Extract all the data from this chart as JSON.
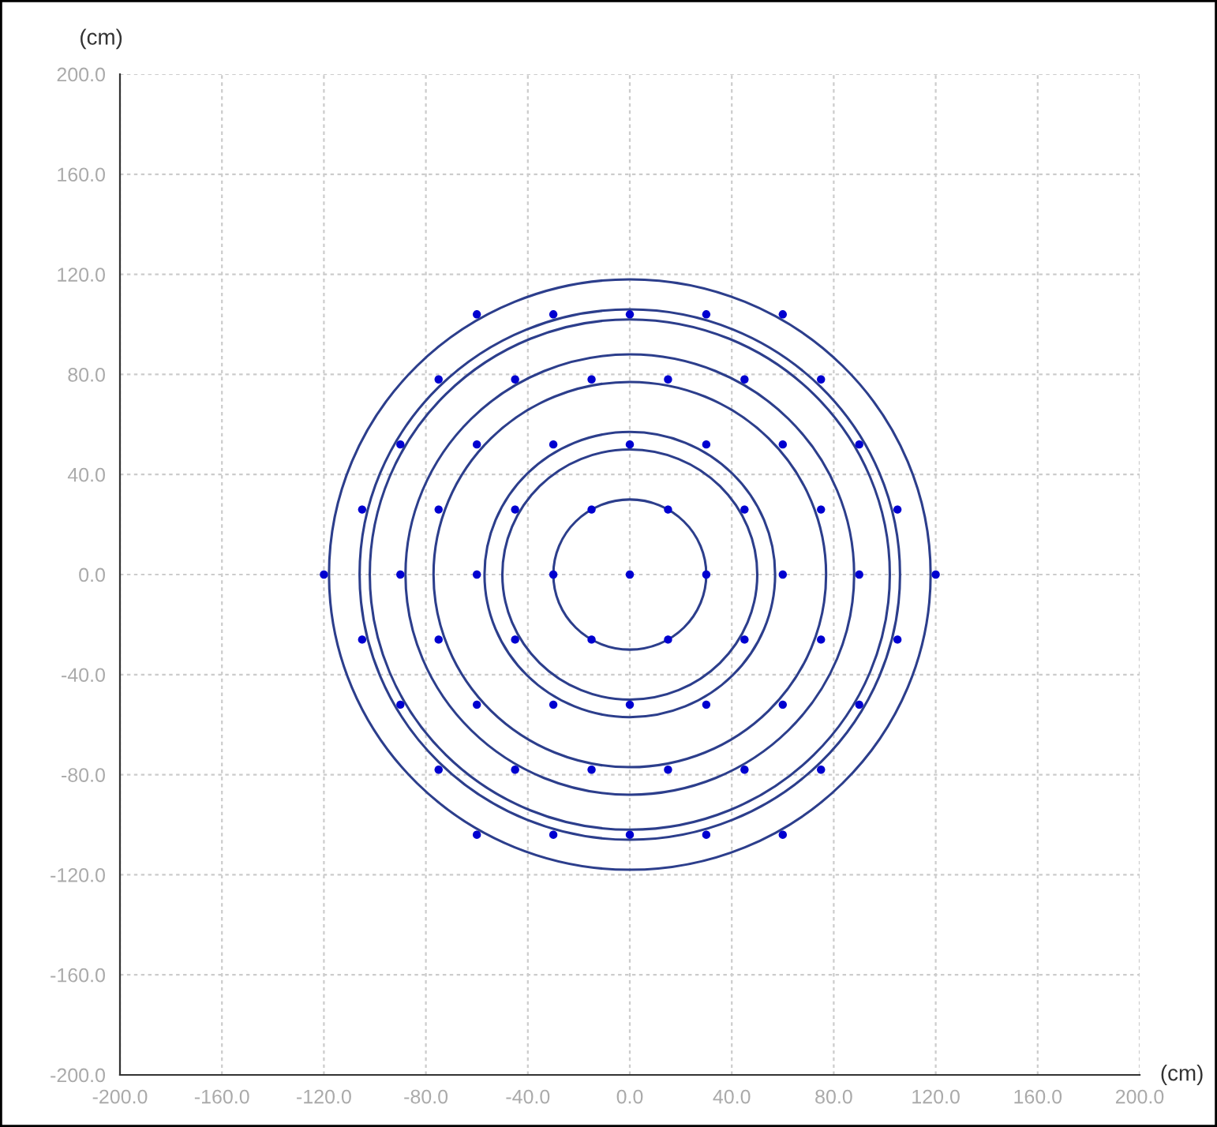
{
  "chart_data": {
    "type": "scatter",
    "xlabel": "(cm)",
    "ylabel": "(cm)",
    "xlim": [
      -200,
      200
    ],
    "ylim": [
      -200,
      200
    ],
    "xticks": [
      {
        "value": -200,
        "label": "-200.0"
      },
      {
        "value": -160,
        "label": "-160.0"
      },
      {
        "value": -120,
        "label": "-120.0"
      },
      {
        "value": -80,
        "label": "-80.0"
      },
      {
        "value": -40,
        "label": "-40.0"
      },
      {
        "value": 0,
        "label": "0.0"
      },
      {
        "value": 40,
        "label": "40.0"
      },
      {
        "value": 80,
        "label": "80.0"
      },
      {
        "value": 120,
        "label": "120.0"
      },
      {
        "value": 160,
        "label": "160.0"
      },
      {
        "value": 200,
        "label": "200.0"
      }
    ],
    "yticks": [
      {
        "value": -200,
        "label": "-200.0"
      },
      {
        "value": -160,
        "label": "-160.0"
      },
      {
        "value": -120,
        "label": "-120.0"
      },
      {
        "value": -80,
        "label": "-80.0"
      },
      {
        "value": -40,
        "label": "-40.0"
      },
      {
        "value": 0,
        "label": "0.0"
      },
      {
        "value": 40,
        "label": "40.0"
      },
      {
        "value": 80,
        "label": "80.0"
      },
      {
        "value": 120,
        "label": "120.0"
      },
      {
        "value": 160,
        "label": "160.0"
      },
      {
        "value": 200,
        "label": "200.0"
      }
    ],
    "grid": true,
    "legend": false,
    "marker": "circle",
    "series": [
      {
        "color": "#0000d0",
        "x": [
          -60,
          -30,
          0,
          30,
          60,
          -75,
          -45,
          -15,
          15,
          45,
          75,
          -90,
          -60,
          -30,
          0,
          30,
          60,
          90,
          -105,
          -75,
          -45,
          -15,
          15,
          45,
          75,
          105,
          -120,
          -90,
          -60,
          -30,
          0,
          30,
          60,
          90,
          120,
          -105,
          -75,
          -45,
          -15,
          15,
          45,
          75,
          105,
          -90,
          -60,
          -30,
          0,
          30,
          60,
          90,
          -75,
          -45,
          -15,
          15,
          45,
          75,
          -60,
          -30,
          0,
          30,
          60
        ],
        "values": [
          104,
          104,
          104,
          104,
          104,
          78,
          78,
          78,
          78,
          78,
          78,
          52,
          52,
          52,
          52,
          52,
          52,
          52,
          26,
          26,
          26,
          26,
          26,
          26,
          26,
          26,
          0,
          0,
          0,
          0,
          0,
          0,
          0,
          0,
          0,
          -26,
          -26,
          -26,
          -26,
          -26,
          -26,
          -26,
          -26,
          -52,
          -52,
          -52,
          -52,
          -52,
          -52,
          -52,
          -78,
          -78,
          -78,
          -78,
          -78,
          -78,
          -104,
          -104,
          -104,
          -104,
          -104
        ]
      }
    ]
  }
}
